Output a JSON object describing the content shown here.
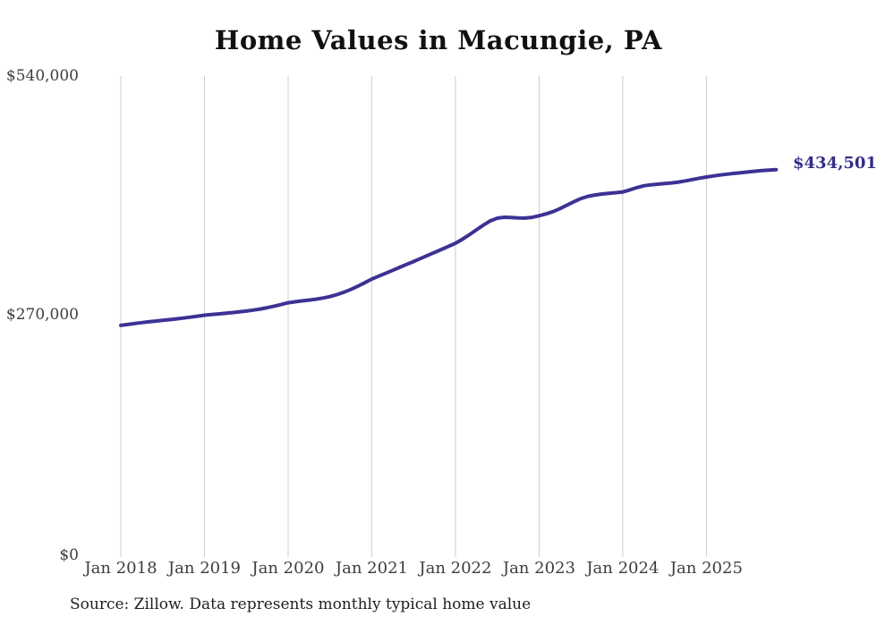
{
  "title": "Home Values in Macungie, PA",
  "end_label": "$434,501",
  "source_note": "Source: Zillow. Data represents monthly typical home value",
  "colors": {
    "line": "#3c3295",
    "end_label": "#322d86",
    "gridline": "#cccccc",
    "axis_text": "#3d3d3d",
    "title_text": "#111111",
    "background": "#ffffff"
  },
  "chart_data": {
    "type": "line",
    "title": "Home Values in Macungie, PA",
    "xlabel": "",
    "ylabel": "",
    "frequency": "monthly",
    "x_start": "Jan 2018",
    "x_end": "Nov 2025",
    "grid": "vertical-only",
    "legend": "none",
    "ylim": [
      0,
      540000
    ],
    "y_tick_values": [
      540000,
      270000,
      0
    ],
    "y_tick_labels": [
      "$540,000",
      "$270,000",
      "$0"
    ],
    "x_tick_labels": [
      "Jan 2018",
      "Jan 2019",
      "Jan 2020",
      "Jan 2021",
      "Jan 2022",
      "Jan 2023",
      "Jan 2024",
      "Jan 2025"
    ],
    "final_value": 434501,
    "final_value_label": "$434,501",
    "series": [
      {
        "name": "Typical home value",
        "values": [
          259000,
          260000,
          261100,
          262100,
          263000,
          263900,
          264700,
          265500,
          266400,
          267300,
          268300,
          269400,
          270500,
          271200,
          271900,
          272600,
          273400,
          274200,
          275100,
          276200,
          277500,
          279000,
          280700,
          282500,
          284500,
          285600,
          286600,
          287500,
          288500,
          289800,
          291500,
          293700,
          296400,
          299500,
          303100,
          307100,
          311200,
          314500,
          317800,
          321100,
          324400,
          327700,
          331000,
          334400,
          337800,
          341200,
          344600,
          348000,
          351500,
          356000,
          361200,
          366600,
          372000,
          376800,
          379800,
          380800,
          380600,
          380100,
          379900,
          380700,
          382500,
          384600,
          387200,
          390600,
          394500,
          398400,
          401900,
          404400,
          405900,
          407000,
          407800,
          408500,
          409300,
          411600,
          414200,
          416300,
          417400,
          418100,
          418800,
          419500,
          420500,
          421800,
          423300,
          424800,
          426200,
          427400,
          428500,
          429400,
          430300,
          431100,
          431900,
          432700,
          433400,
          434000,
          434501
        ]
      }
    ]
  }
}
